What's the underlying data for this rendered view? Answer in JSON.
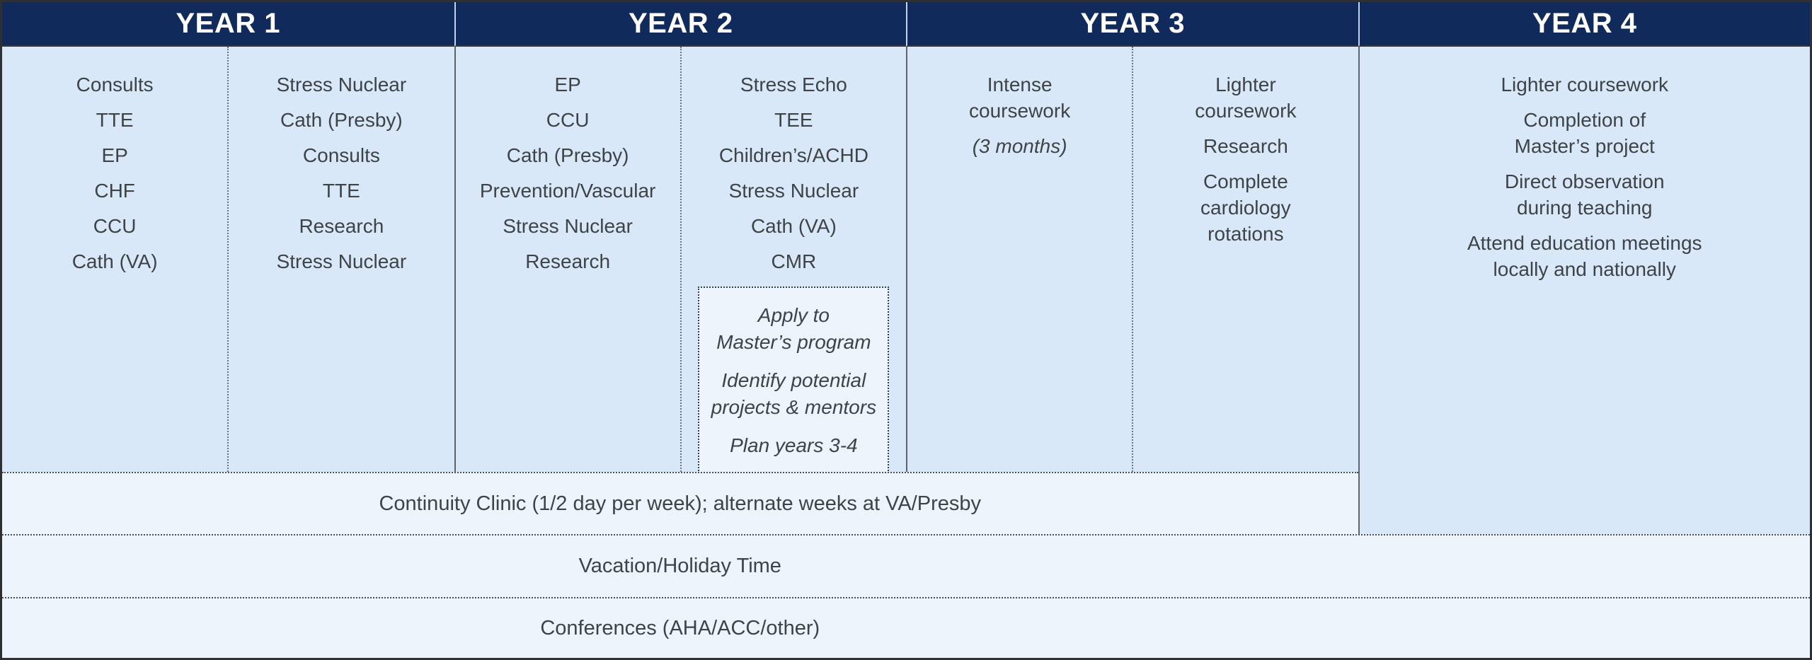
{
  "title": "Fellowship curriculum schedule by year",
  "colors": {
    "header_bg": "#102a5b",
    "content_bg": "#d9e8f8",
    "light_row_bg": "#edf4fc",
    "text": "#3e4347",
    "header_text": "#ffffff"
  },
  "years": [
    {
      "label": "YEAR 1",
      "cols": [
        {
          "items": [
            "Consults",
            "TTE",
            "EP",
            "CHF",
            "CCU",
            "Cath (VA)"
          ]
        },
        {
          "items": [
            "Stress Nuclear",
            "Cath (Presby)",
            "Consults",
            "TTE",
            "Research",
            "Stress Nuclear"
          ]
        }
      ]
    },
    {
      "label": "YEAR 2",
      "cols": [
        {
          "items": [
            "EP",
            "CCU",
            "Cath (Presby)",
            "Prevention/Vascular",
            "Stress Nuclear",
            "Research"
          ]
        },
        {
          "items": [
            "Stress Echo",
            "TEE",
            "Children’s/ACHD",
            "Stress Nuclear",
            "Cath (VA)",
            "CMR"
          ],
          "box": {
            "items": [
              "Apply to\nMaster’s program",
              "Identify potential\nprojects & mentors",
              "Plan years 3-4"
            ]
          }
        }
      ]
    },
    {
      "label": "YEAR 3",
      "cols": [
        {
          "items": [
            "Intense\ncoursework"
          ],
          "note": "(3 months)"
        },
        {
          "items": [
            "Lighter\ncoursework",
            "Research",
            "Complete\ncardiology\nrotations"
          ]
        }
      ]
    },
    {
      "label": "YEAR 4",
      "cols": [
        {
          "items": [
            "Lighter coursework",
            "Completion of\nMaster’s project",
            "Direct observation\nduring teaching",
            "Attend education meetings\nlocally and nationally"
          ]
        }
      ]
    }
  ],
  "bottom": {
    "continuity": "Continuity Clinic (1/2 day per week); alternate weeks at VA/Presby",
    "vacation": "Vacation/Holiday Time",
    "conferences": "Conferences (AHA/ACC/other)"
  }
}
